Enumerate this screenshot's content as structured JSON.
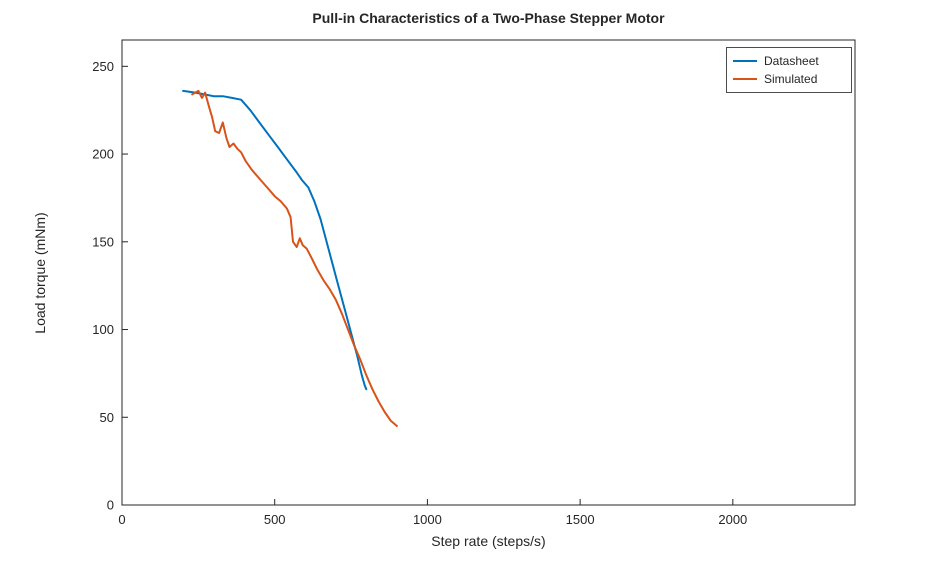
{
  "chart_data": {
    "type": "line",
    "title": "Pull-in Characteristics of a Two-Phase Stepper Motor",
    "xlabel": "Step rate (steps/s)",
    "ylabel": "Load torque (mNm)",
    "xlim": [
      0,
      2400
    ],
    "ylim": [
      0,
      265
    ],
    "xticks": [
      0,
      500,
      1000,
      1500,
      2000
    ],
    "yticks": [
      0,
      50,
      100,
      150,
      200,
      250
    ],
    "grid": false,
    "box": true,
    "legend_position": "top-right",
    "axis_color": "#262626",
    "series": [
      {
        "name": "Datasheet",
        "color": "#0072BD",
        "x": [
          200,
          240,
          270,
          300,
          330,
          360,
          390,
          420,
          450,
          480,
          510,
          540,
          570,
          590,
          610,
          630,
          650,
          670,
          690,
          710,
          730,
          750,
          770,
          785,
          795,
          800
        ],
        "y": [
          236,
          235,
          234,
          233,
          233,
          232,
          231,
          225,
          218,
          211,
          204,
          197,
          190,
          185,
          181,
          173,
          163,
          150,
          137,
          124,
          111,
          98,
          85,
          74,
          68,
          66
        ]
      },
      {
        "name": "Simulated",
        "color": "#D95319",
        "x": [
          230,
          250,
          262,
          272,
          285,
          295,
          305,
          318,
          330,
          342,
          352,
          365,
          378,
          390,
          405,
          425,
          450,
          475,
          500,
          520,
          540,
          552,
          560,
          572,
          582,
          592,
          605,
          620,
          640,
          660,
          680,
          700,
          720,
          740,
          760,
          780,
          800,
          820,
          840,
          860,
          880,
          900
        ],
        "y": [
          234,
          236,
          232,
          235,
          227,
          221,
          213,
          212,
          218,
          209,
          204,
          206,
          203,
          201,
          196,
          191,
          186,
          181,
          176,
          173,
          169,
          164,
          150,
          147,
          152,
          148,
          146,
          141,
          134,
          128,
          123,
          117,
          109,
          100,
          91,
          83,
          74,
          66,
          59,
          53,
          48,
          45
        ]
      }
    ]
  }
}
